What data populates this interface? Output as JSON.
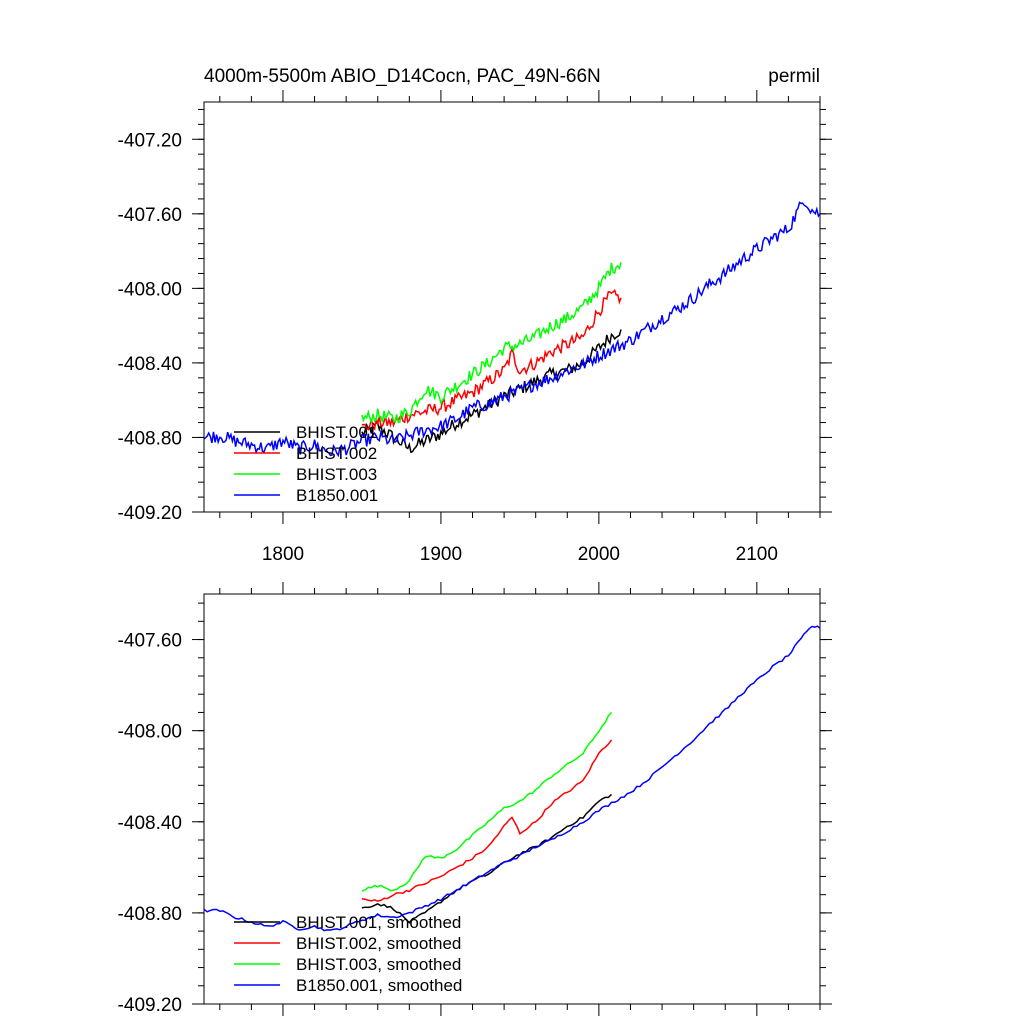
{
  "chart_data": [
    {
      "type": "line",
      "title_left": "4000m-5500m ABIO_D14Cocn, PAC_49N-66N",
      "title_right": "permil",
      "xlim": [
        1750,
        2140
      ],
      "ylim": [
        -409.2,
        -407.0
      ],
      "xticks": [
        1800,
        1900,
        2000,
        2100
      ],
      "xtick_labels": [
        "1800",
        "1900",
        "2000",
        "2100"
      ],
      "yticks": [
        -407.2,
        -407.6,
        -408.0,
        -408.4,
        -408.8,
        -409.2
      ],
      "ytick_labels": [
        "-407.20",
        "-407.60",
        "-408.00",
        "-408.40",
        "-408.80",
        "-409.20"
      ],
      "series": [
        {
          "name": "BHIST.001",
          "color": "#000000",
          "x": [
            1850,
            1860,
            1870,
            1880,
            1890,
            1900,
            1910,
            1920,
            1930,
            1940,
            1950,
            1960,
            1970,
            1980,
            1990,
            2000,
            2007,
            2014
          ],
          "values": [
            -408.78,
            -408.74,
            -408.8,
            -408.86,
            -408.82,
            -408.78,
            -408.72,
            -408.68,
            -408.63,
            -408.58,
            -408.54,
            -408.5,
            -408.46,
            -408.44,
            -408.4,
            -408.32,
            -408.26,
            -408.22
          ]
        },
        {
          "name": "BHIST.002",
          "color": "#ff0000",
          "x": [
            1850,
            1860,
            1870,
            1880,
            1890,
            1900,
            1910,
            1920,
            1930,
            1940,
            1945,
            1950,
            1960,
            1970,
            1980,
            1990,
            2000,
            2007,
            2014
          ],
          "values": [
            -408.75,
            -408.72,
            -408.72,
            -408.68,
            -408.66,
            -408.64,
            -408.6,
            -408.56,
            -408.5,
            -408.44,
            -408.35,
            -408.44,
            -408.4,
            -408.34,
            -408.3,
            -408.26,
            -408.12,
            -408.04,
            -408.05
          ]
        },
        {
          "name": "BHIST.003",
          "color": "#00ff00",
          "x": [
            1850,
            1860,
            1870,
            1880,
            1890,
            1900,
            1910,
            1920,
            1930,
            1940,
            1950,
            1960,
            1970,
            1980,
            1990,
            2000,
            2007,
            2014
          ],
          "values": [
            -408.7,
            -408.68,
            -408.7,
            -408.66,
            -408.54,
            -408.58,
            -408.52,
            -408.46,
            -408.4,
            -408.32,
            -408.3,
            -408.26,
            -408.2,
            -408.16,
            -408.1,
            -408.0,
            -407.9,
            -407.86
          ]
        },
        {
          "name": "B1850.001",
          "color": "#0000ff",
          "x": [
            1750,
            1760,
            1770,
            1780,
            1790,
            1800,
            1810,
            1820,
            1830,
            1840,
            1850,
            1860,
            1870,
            1880,
            1890,
            1900,
            1910,
            1920,
            1930,
            1940,
            1950,
            1960,
            1970,
            1980,
            1990,
            2000,
            2010,
            2020,
            2030,
            2040,
            2050,
            2060,
            2070,
            2080,
            2090,
            2100,
            2110,
            2120,
            2130,
            2135,
            2140
          ],
          "values": [
            -408.8,
            -408.79,
            -408.82,
            -408.84,
            -408.86,
            -408.82,
            -408.86,
            -408.84,
            -408.88,
            -408.86,
            -408.82,
            -408.8,
            -408.82,
            -408.79,
            -408.76,
            -408.74,
            -408.7,
            -408.64,
            -408.62,
            -408.58,
            -408.55,
            -408.51,
            -408.48,
            -408.44,
            -408.41,
            -408.36,
            -408.32,
            -408.28,
            -408.22,
            -408.16,
            -408.11,
            -408.05,
            -407.98,
            -407.92,
            -407.85,
            -407.79,
            -407.73,
            -407.68,
            -407.52,
            -407.58,
            -407.6
          ]
        }
      ]
    },
    {
      "type": "line",
      "xlim": [
        1750,
        2140
      ],
      "ylim": [
        -409.2,
        -407.4
      ],
      "xticks": [
        1800,
        1900,
        2000,
        2100
      ],
      "yticks": [
        -407.6,
        -408.0,
        -408.4,
        -408.8,
        -409.2
      ],
      "ytick_labels": [
        "-407.60",
        "-408.00",
        "-408.40",
        "-408.80",
        "-409.20"
      ],
      "series": [
        {
          "name": "BHIST.001, smoothed",
          "color": "#000000",
          "x": [
            1850,
            1860,
            1870,
            1880,
            1890,
            1900,
            1910,
            1920,
            1930,
            1940,
            1950,
            1960,
            1970,
            1980,
            1990,
            2000,
            2008
          ],
          "values": [
            -408.78,
            -408.76,
            -408.78,
            -408.84,
            -408.8,
            -408.75,
            -408.7,
            -408.66,
            -408.63,
            -408.58,
            -408.54,
            -408.51,
            -408.47,
            -408.42,
            -408.38,
            -408.31,
            -408.28
          ]
        },
        {
          "name": "BHIST.002, smoothed",
          "color": "#ff0000",
          "x": [
            1850,
            1860,
            1870,
            1880,
            1890,
            1900,
            1910,
            1920,
            1930,
            1940,
            1945,
            1950,
            1960,
            1970,
            1980,
            1990,
            2000,
            2008
          ],
          "values": [
            -408.74,
            -408.75,
            -408.72,
            -408.7,
            -408.67,
            -408.64,
            -408.6,
            -408.56,
            -408.51,
            -408.42,
            -408.38,
            -408.45,
            -408.4,
            -408.32,
            -408.27,
            -408.22,
            -408.1,
            -408.04
          ]
        },
        {
          "name": "BHIST.003, smoothed",
          "color": "#00ff00",
          "x": [
            1850,
            1860,
            1870,
            1880,
            1890,
            1900,
            1910,
            1920,
            1930,
            1940,
            1950,
            1960,
            1970,
            1980,
            1990,
            2000,
            2008
          ],
          "values": [
            -408.7,
            -408.68,
            -408.7,
            -408.66,
            -408.55,
            -408.56,
            -408.52,
            -408.46,
            -408.4,
            -408.34,
            -408.31,
            -408.26,
            -408.2,
            -408.15,
            -408.1,
            -408.0,
            -407.92
          ]
        },
        {
          "name": "B1850.001, smoothed",
          "color": "#0000ff",
          "x": [
            1750,
            1760,
            1770,
            1780,
            1790,
            1800,
            1810,
            1820,
            1830,
            1840,
            1850,
            1860,
            1870,
            1880,
            1890,
            1900,
            1910,
            1920,
            1930,
            1940,
            1950,
            1960,
            1970,
            1980,
            1990,
            2000,
            2010,
            2020,
            2030,
            2040,
            2050,
            2060,
            2070,
            2080,
            2090,
            2100,
            2110,
            2120,
            2130,
            2135,
            2140
          ],
          "values": [
            -408.79,
            -408.79,
            -408.82,
            -408.84,
            -408.86,
            -408.84,
            -408.87,
            -408.86,
            -408.88,
            -408.86,
            -408.83,
            -408.81,
            -408.82,
            -408.8,
            -408.77,
            -408.74,
            -408.7,
            -408.66,
            -408.62,
            -408.58,
            -408.55,
            -408.51,
            -408.48,
            -408.44,
            -408.4,
            -408.35,
            -408.31,
            -408.27,
            -408.22,
            -408.16,
            -408.1,
            -408.04,
            -407.97,
            -407.91,
            -407.84,
            -407.78,
            -407.72,
            -407.67,
            -407.58,
            -407.54,
            -407.55
          ]
        }
      ]
    }
  ]
}
